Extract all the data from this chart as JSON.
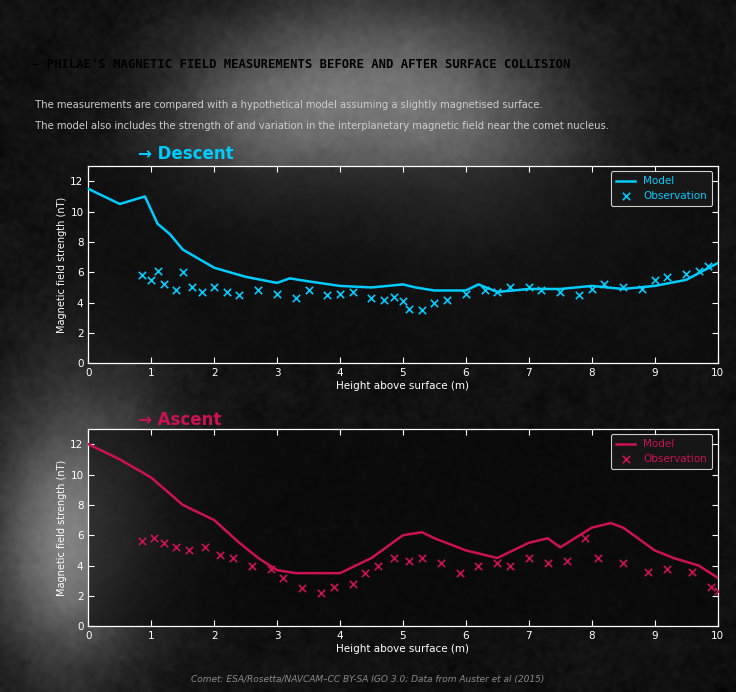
{
  "title": "→ PHILAE'S MAGNETIC FIELD MEASUREMENTS BEFORE AND AFTER SURFACE COLLISION",
  "subtitle_line1": "  The measurements are compared with a hypothetical model assuming a slightly magnetised surface.",
  "subtitle_line2": "  The model also includes the strength of and variation in the interplanetary magnetic field near the comet nucleus.",
  "caption": "Comet: ESA/Rosetta/NAVCAM–CC BY-SA IGO 3.0; Data from Auster et al (2015)",
  "bg_color": "#1a1a1a",
  "title_bg": "#ffffff",
  "title_color": "#000000",
  "subtitle_color": "#cccccc",
  "descent_label": "→ Descent",
  "descent_color": "#00ccff",
  "descent_model_x": [
    0.0,
    0.5,
    0.9,
    1.1,
    1.3,
    1.5,
    2.0,
    2.5,
    3.0,
    3.2,
    3.5,
    4.0,
    4.5,
    5.0,
    5.2,
    5.5,
    6.0,
    6.2,
    6.5,
    7.0,
    7.5,
    8.0,
    8.5,
    9.0,
    9.5,
    10.0
  ],
  "descent_model_y": [
    11.5,
    10.5,
    11.0,
    9.2,
    8.5,
    7.5,
    6.3,
    5.7,
    5.3,
    5.6,
    5.4,
    5.1,
    5.0,
    5.2,
    5.0,
    4.8,
    4.8,
    5.2,
    4.7,
    4.9,
    4.9,
    5.1,
    4.9,
    5.1,
    5.5,
    6.6
  ],
  "descent_obs_x": [
    0.85,
    1.0,
    1.1,
    1.2,
    1.4,
    1.5,
    1.65,
    1.8,
    2.0,
    2.2,
    2.4,
    2.7,
    3.0,
    3.3,
    3.5,
    3.8,
    4.0,
    4.2,
    4.5,
    4.7,
    4.85,
    5.0,
    5.1,
    5.3,
    5.5,
    5.7,
    6.0,
    6.3,
    6.5,
    6.7,
    7.0,
    7.2,
    7.5,
    7.8,
    8.0,
    8.2,
    8.5,
    8.8,
    9.0,
    9.2,
    9.5,
    9.7,
    9.85
  ],
  "descent_obs_y": [
    5.8,
    5.5,
    6.1,
    5.2,
    4.8,
    6.0,
    5.0,
    4.7,
    5.0,
    4.7,
    4.5,
    4.8,
    4.6,
    4.3,
    4.8,
    4.5,
    4.6,
    4.7,
    4.3,
    4.2,
    4.4,
    4.1,
    3.6,
    3.5,
    4.0,
    4.2,
    4.6,
    4.8,
    4.7,
    5.0,
    5.0,
    4.8,
    4.7,
    4.5,
    4.9,
    5.2,
    5.0,
    4.9,
    5.5,
    5.7,
    5.9,
    6.1,
    6.4
  ],
  "ascent_label": "→ Ascent",
  "ascent_color": "#cc1155",
  "ascent_model_x": [
    0.0,
    0.5,
    1.0,
    1.5,
    2.0,
    2.4,
    2.7,
    3.0,
    3.3,
    3.7,
    4.0,
    4.5,
    5.0,
    5.3,
    5.5,
    6.0,
    6.5,
    7.0,
    7.3,
    7.5,
    8.0,
    8.3,
    8.5,
    9.0,
    9.3,
    9.7,
    10.0
  ],
  "ascent_model_y": [
    12.0,
    11.0,
    9.8,
    8.0,
    7.0,
    5.5,
    4.5,
    3.7,
    3.5,
    3.5,
    3.5,
    4.5,
    6.0,
    6.2,
    5.8,
    5.0,
    4.5,
    5.5,
    5.8,
    5.2,
    6.5,
    6.8,
    6.5,
    5.0,
    4.5,
    4.0,
    3.2
  ],
  "ascent_obs_x": [
    0.85,
    1.05,
    1.2,
    1.4,
    1.6,
    1.85,
    2.1,
    2.3,
    2.6,
    2.9,
    3.1,
    3.4,
    3.7,
    3.9,
    4.2,
    4.4,
    4.6,
    4.85,
    5.1,
    5.3,
    5.6,
    5.9,
    6.2,
    6.5,
    6.7,
    7.0,
    7.3,
    7.6,
    7.9,
    8.1,
    8.5,
    8.9,
    9.2,
    9.6,
    9.9,
    10.0
  ],
  "ascent_obs_y": [
    5.6,
    5.8,
    5.5,
    5.2,
    5.0,
    5.2,
    4.7,
    4.5,
    4.0,
    3.8,
    3.2,
    2.5,
    2.2,
    2.6,
    2.8,
    3.5,
    4.0,
    4.5,
    4.3,
    4.5,
    4.2,
    3.5,
    4.0,
    4.2,
    4.0,
    4.5,
    4.2,
    4.3,
    5.8,
    4.5,
    4.2,
    3.6,
    3.8,
    3.6,
    2.6,
    2.3
  ],
  "ylabel": "Magnetic field strength (nT)",
  "xlabel": "Height above surface (m)",
  "ylim": [
    0,
    13
  ],
  "xlim": [
    0,
    10
  ],
  "yticks": [
    0,
    2,
    4,
    6,
    8,
    10,
    12
  ],
  "xticks": [
    0,
    1,
    2,
    3,
    4,
    5,
    6,
    7,
    8,
    9,
    10
  ]
}
